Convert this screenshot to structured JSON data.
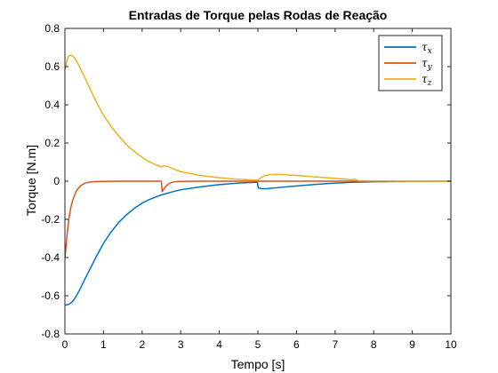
{
  "chart_data": {
    "type": "line",
    "title": "Entradas de Torque pelas Rodas de Reação",
    "xlabel": "Tempo [s]",
    "ylabel": "Torque [N.m]",
    "xlim": [
      0,
      10
    ],
    "ylim": [
      -0.8,
      0.8
    ],
    "xticks": [
      0,
      1,
      2,
      3,
      4,
      5,
      6,
      7,
      8,
      9,
      10
    ],
    "xtick_labels": [
      "0",
      "1",
      "2",
      "3",
      "4",
      "5",
      "6",
      "7",
      "8",
      "9",
      "10"
    ],
    "yticks": [
      -0.8,
      -0.6,
      -0.4,
      -0.2,
      0,
      0.2,
      0.4,
      0.6,
      0.8
    ],
    "ytick_labels": [
      "-0.8",
      "-0.6",
      "-0.4",
      "-0.2",
      "0",
      "0.2",
      "0.4",
      "0.6",
      "0.8"
    ],
    "grid": false,
    "legend_position": "top-right",
    "series": [
      {
        "name": "τx",
        "legend_symbol": "τ",
        "legend_subscript": "x",
        "color": "#0072BD",
        "x": [
          0,
          0.05,
          0.1,
          0.15,
          0.2,
          0.3,
          0.4,
          0.5,
          0.6,
          0.8,
          1.0,
          1.2,
          1.4,
          1.6,
          1.8,
          2.0,
          2.2,
          2.5,
          2.8,
          3.0,
          3.5,
          4.0,
          4.5,
          4.99,
          5.0,
          5.02,
          5.1,
          5.2,
          5.3,
          5.5,
          6.0,
          6.5,
          7.0,
          7.5,
          8.0,
          9.0,
          10.0
        ],
        "y": [
          -0.648,
          -0.648,
          -0.645,
          -0.638,
          -0.63,
          -0.6,
          -0.562,
          -0.52,
          -0.48,
          -0.4,
          -0.325,
          -0.265,
          -0.215,
          -0.175,
          -0.142,
          -0.115,
          -0.095,
          -0.072,
          -0.055,
          -0.045,
          -0.03,
          -0.018,
          -0.01,
          -0.005,
          -0.028,
          -0.036,
          -0.039,
          -0.04,
          -0.038,
          -0.034,
          -0.025,
          -0.017,
          -0.01,
          -0.005,
          -0.003,
          -0.001,
          0
        ]
      },
      {
        "name": "τy",
        "legend_symbol": "τ",
        "legend_subscript": "y",
        "color": "#D95319",
        "x": [
          0,
          0.02,
          0.05,
          0.1,
          0.15,
          0.2,
          0.3,
          0.4,
          0.5,
          0.6,
          0.8,
          1.0,
          1.5,
          2.0,
          2.5,
          2.52,
          2.55,
          2.6,
          2.7,
          2.8,
          2.9,
          3.0,
          3.5,
          4.0,
          5.0,
          6.0,
          7.0,
          8.0,
          9.0,
          10.0
        ],
        "y": [
          -0.4,
          -0.36,
          -0.29,
          -0.2,
          -0.14,
          -0.1,
          -0.05,
          -0.025,
          -0.012,
          -0.006,
          -0.002,
          -0.001,
          0,
          0,
          0,
          -0.055,
          -0.045,
          -0.03,
          -0.012,
          -0.005,
          -0.002,
          -0.001,
          0,
          0,
          0,
          0,
          0,
          0,
          0,
          0
        ]
      },
      {
        "name": "τz",
        "legend_symbol": "τ",
        "legend_subscript": "z",
        "color": "#EDB120",
        "x": [
          0,
          0.03,
          0.06,
          0.1,
          0.15,
          0.2,
          0.25,
          0.3,
          0.4,
          0.5,
          0.6,
          0.8,
          1.0,
          1.2,
          1.4,
          1.6,
          1.8,
          2.0,
          2.2,
          2.4,
          2.5,
          2.55,
          2.65,
          2.8,
          3.0,
          3.5,
          4.0,
          4.5,
          4.99,
          5.0,
          5.05,
          5.1,
          5.2,
          5.3,
          5.5,
          6.0,
          6.5,
          7.0,
          7.4,
          7.5,
          7.6,
          8.0,
          9.0,
          10.0
        ],
        "y": [
          0.58,
          0.61,
          0.64,
          0.655,
          0.66,
          0.655,
          0.645,
          0.63,
          0.59,
          0.55,
          0.505,
          0.42,
          0.345,
          0.285,
          0.235,
          0.19,
          0.155,
          0.125,
          0.1,
          0.082,
          0.075,
          0.08,
          0.078,
          0.065,
          0.05,
          0.03,
          0.018,
          0.01,
          0.005,
          0.006,
          0.015,
          0.022,
          0.03,
          0.035,
          0.036,
          0.03,
          0.022,
          0.015,
          0.008,
          0.01,
          0.003,
          0.002,
          0,
          0
        ]
      }
    ]
  }
}
